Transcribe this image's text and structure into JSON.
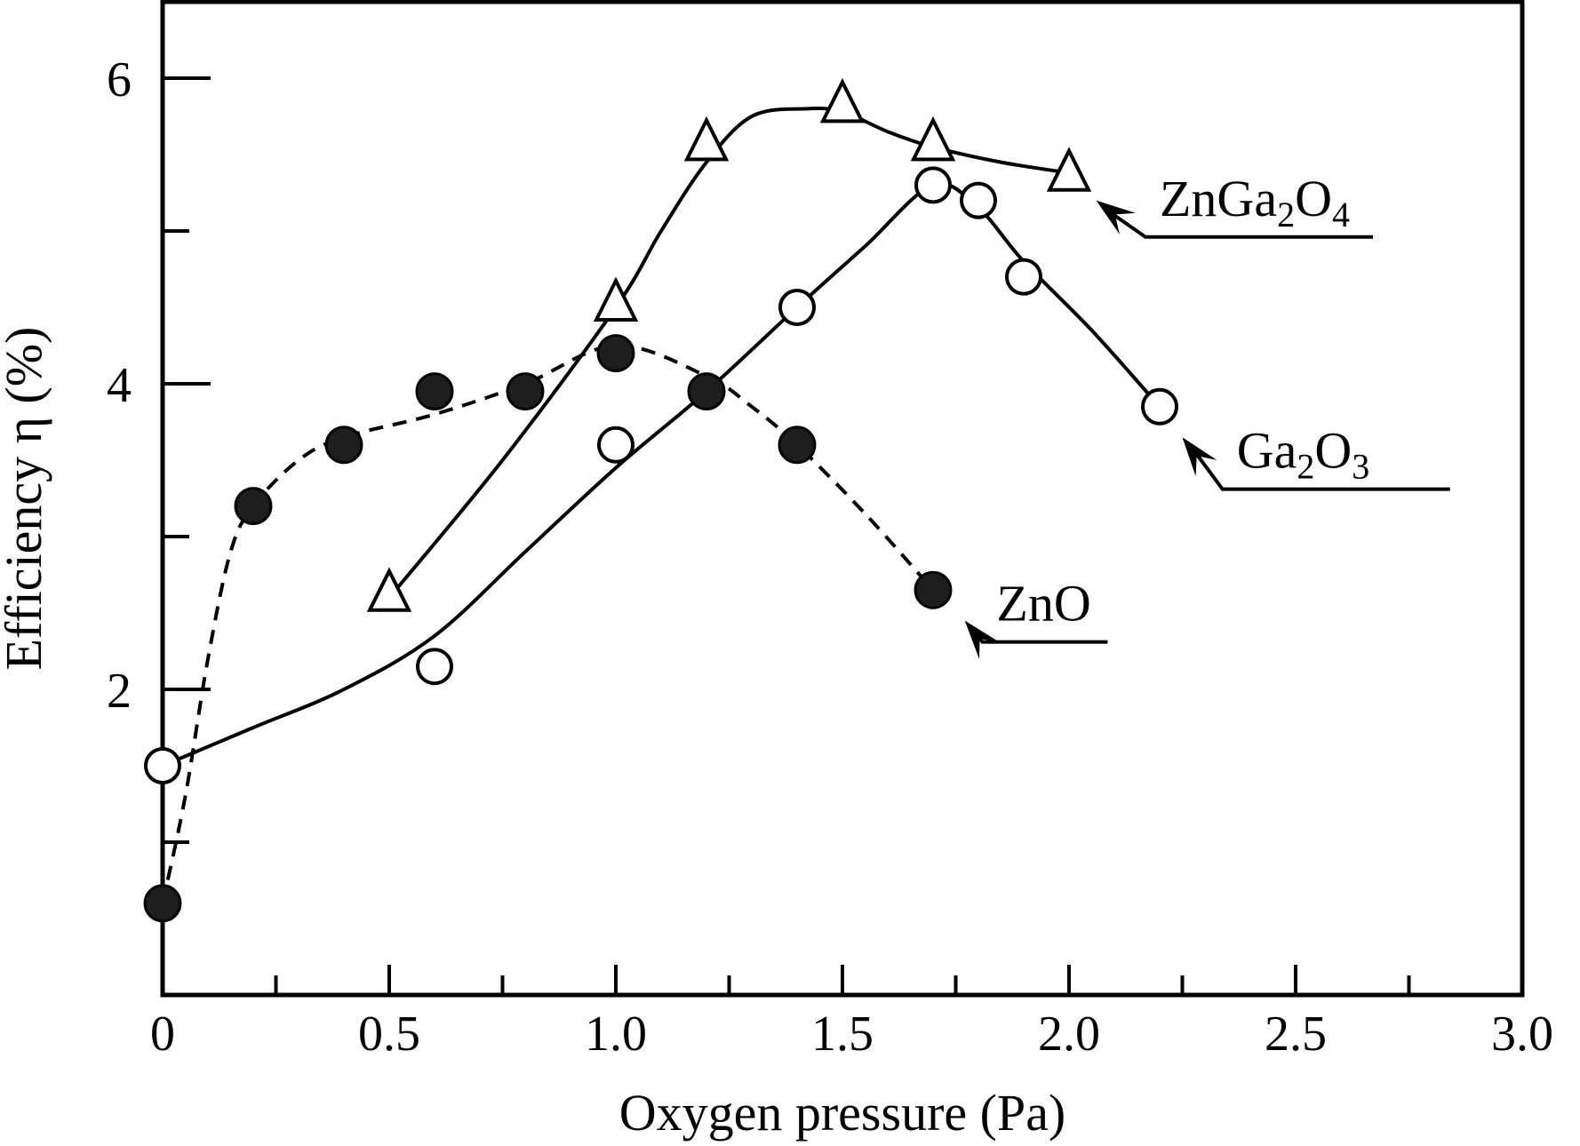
{
  "chart_data": {
    "type": "scatter",
    "title": "",
    "xlabel": "Oxygen pressure (Pa)",
    "ylabel": "Efficiency η (%)",
    "xlim": [
      0,
      3.0
    ],
    "ylim": [
      0,
      6.5
    ],
    "x_ticks": [
      {
        "value": 0,
        "label": "0"
      },
      {
        "value": 0.5,
        "label": "0.5"
      },
      {
        "value": 1.0,
        "label": "1.0"
      },
      {
        "value": 1.5,
        "label": "1.5"
      },
      {
        "value": 2.0,
        "label": "2.0"
      },
      {
        "value": 2.5,
        "label": "2.5"
      },
      {
        "value": 3.0,
        "label": "3.0"
      }
    ],
    "x_minor_ticks": [
      0.25,
      0.75,
      1.25,
      1.75,
      2.25,
      2.75
    ],
    "y_ticks": [
      {
        "value": 2,
        "label": "2"
      },
      {
        "value": 4,
        "label": "4"
      },
      {
        "value": 6,
        "label": "6"
      }
    ],
    "y_minor_ticks": [
      1,
      3,
      5
    ],
    "grid": false,
    "legend": "inline labels with arrows",
    "series": [
      {
        "name": "ZnGa2O4",
        "label_parts": [
          {
            "t": "ZnGa",
            "sub": false
          },
          {
            "t": "2",
            "sub": true
          },
          {
            "t": "O",
            "sub": false
          },
          {
            "t": "4",
            "sub": true
          }
        ],
        "marker": "open-triangle",
        "line": "solid",
        "x": [
          0.5,
          1.0,
          1.2,
          1.5,
          1.7,
          2.0
        ],
        "y": [
          2.6,
          4.5,
          5.55,
          5.8,
          5.55,
          5.35
        ],
        "curve": [
          [
            0.5,
            2.6
          ],
          [
            0.75,
            3.5
          ],
          [
            1.0,
            4.5
          ],
          [
            1.1,
            5.0
          ],
          [
            1.2,
            5.45
          ],
          [
            1.3,
            5.75
          ],
          [
            1.42,
            5.8
          ],
          [
            1.5,
            5.78
          ],
          [
            1.6,
            5.65
          ],
          [
            1.7,
            5.55
          ],
          [
            1.85,
            5.45
          ],
          [
            2.0,
            5.38
          ]
        ],
        "label_anchor": [
          2.06,
          5.2
        ],
        "label_text_pos": [
          2.2,
          5.1
        ]
      },
      {
        "name": "Ga2O3",
        "label_parts": [
          {
            "t": "Ga",
            "sub": false
          },
          {
            "t": "2",
            "sub": true
          },
          {
            "t": "O",
            "sub": false
          },
          {
            "t": "3",
            "sub": true
          }
        ],
        "marker": "open-circle",
        "line": "solid",
        "x": [
          0.0,
          0.6,
          1.0,
          1.4,
          1.7,
          1.8,
          1.9,
          2.2
        ],
        "y": [
          1.5,
          2.15,
          3.6,
          4.5,
          5.3,
          5.2,
          4.7,
          3.85
        ],
        "curve": [
          [
            0.0,
            1.5
          ],
          [
            0.2,
            1.75
          ],
          [
            0.4,
            2.0
          ],
          [
            0.6,
            2.35
          ],
          [
            0.8,
            2.9
          ],
          [
            1.0,
            3.45
          ],
          [
            1.2,
            3.95
          ],
          [
            1.4,
            4.5
          ],
          [
            1.55,
            4.9
          ],
          [
            1.7,
            5.3
          ],
          [
            1.8,
            5.15
          ],
          [
            1.9,
            4.8
          ],
          [
            2.05,
            4.35
          ],
          [
            2.2,
            3.85
          ]
        ],
        "label_anchor": [
          2.25,
          3.65
        ],
        "label_text_pos": [
          2.37,
          3.45
        ]
      },
      {
        "name": "ZnO",
        "label_parts": [
          {
            "t": "ZnO",
            "sub": false
          }
        ],
        "marker": "filled-circle",
        "line": "dashed",
        "x": [
          0.0,
          0.2,
          0.4,
          0.6,
          0.8,
          1.0,
          1.2,
          1.4,
          1.7
        ],
        "y": [
          0.6,
          3.2,
          3.6,
          3.95,
          3.95,
          4.2,
          3.95,
          3.6,
          2.65
        ],
        "curve": [
          [
            0.0,
            0.6
          ],
          [
            0.05,
            1.3
          ],
          [
            0.1,
            2.2
          ],
          [
            0.15,
            2.9
          ],
          [
            0.2,
            3.2
          ],
          [
            0.3,
            3.5
          ],
          [
            0.4,
            3.65
          ],
          [
            0.6,
            3.8
          ],
          [
            0.8,
            4.0
          ],
          [
            1.0,
            4.25
          ],
          [
            1.2,
            4.05
          ],
          [
            1.3,
            3.85
          ],
          [
            1.4,
            3.6
          ],
          [
            1.55,
            3.15
          ],
          [
            1.7,
            2.65
          ]
        ],
        "label_anchor": [
          1.77,
          2.45
        ],
        "label_text_pos": [
          1.84,
          2.45
        ]
      }
    ]
  }
}
